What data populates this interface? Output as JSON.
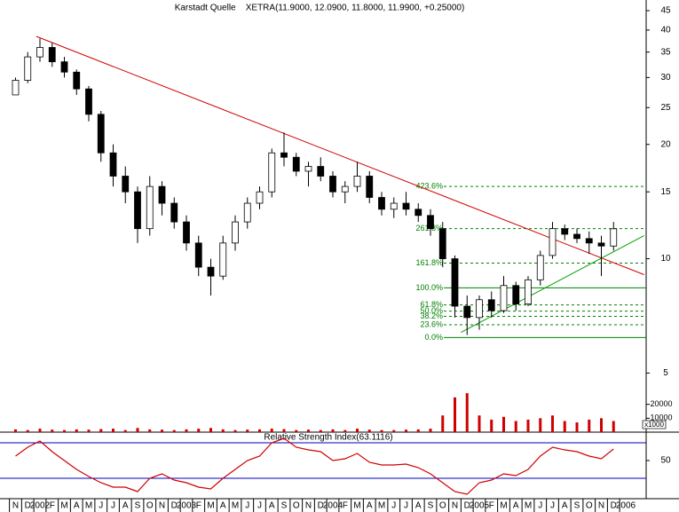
{
  "chart_data": {
    "type": "candlestick",
    "title": "Karstadt Quelle    XETRA(11.9000, 12.0900, 11.8000, 11.9900, +0.25000)",
    "categories": [
      "N",
      "D",
      "2002",
      "F",
      "M",
      "A",
      "M",
      "J",
      "J",
      "A",
      "S",
      "O",
      "N",
      "D",
      "2003",
      "F",
      "M",
      "A",
      "M",
      "J",
      "J",
      "A",
      "S",
      "O",
      "N",
      "D",
      "2004",
      "F",
      "M",
      "A",
      "M",
      "J",
      "J",
      "A",
      "S",
      "O",
      "N",
      "D",
      "2005",
      "F",
      "M",
      "A",
      "M",
      "J",
      "J",
      "A",
      "S",
      "O",
      "N",
      "D",
      "2006"
    ],
    "open": [
      27,
      29.5,
      34,
      36,
      33,
      31,
      28,
      24,
      19,
      16.5,
      15,
      12,
      15.5,
      14,
      12.5,
      11,
      9.5,
      9,
      11,
      12.5,
      14,
      15,
      19,
      18.5,
      17,
      17.5,
      16.5,
      15,
      15.5,
      16.5,
      14.5,
      13.5,
      14,
      13.5,
      13,
      12,
      10,
      7.5,
      7,
      7.8,
      7.3,
      8.5,
      7.6,
      8.8,
      10.2,
      12,
      11.6,
      11.3,
      11,
      10.8,
      null
    ],
    "high": [
      30,
      35,
      38,
      37,
      34,
      31.5,
      28.5,
      24.5,
      20,
      17.5,
      15.5,
      16.5,
      16,
      14.5,
      13,
      11.5,
      10,
      11.5,
      13,
      14.5,
      15.5,
      19.5,
      21.5,
      19,
      18,
      18.5,
      17,
      16,
      18,
      17,
      15,
      14.5,
      15,
      14,
      13.5,
      12.5,
      10.2,
      8,
      8,
      8.2,
      9,
      8.7,
      9,
      10.5,
      12.5,
      12.3,
      12,
      11.8,
      11.5,
      12.5,
      null
    ],
    "low": [
      27,
      29,
      33,
      32,
      30,
      27,
      23,
      18,
      15.5,
      14,
      11,
      11.5,
      13,
      12,
      10.5,
      9,
      8,
      8.8,
      10.5,
      12,
      13.5,
      14.5,
      17.5,
      16.5,
      15.5,
      16,
      14.5,
      14,
      15,
      14,
      13,
      12.8,
      13,
      12.5,
      11.5,
      9.5,
      7,
      6.3,
      6.5,
      7,
      7.2,
      7.3,
      7.5,
      8.5,
      10,
      11.2,
      11,
      10.3,
      9,
      10.5,
      null
    ],
    "close": [
      29.5,
      34,
      36,
      33,
      31,
      28,
      24,
      19,
      16.5,
      15,
      12,
      15.5,
      14,
      12.5,
      11,
      9.5,
      9,
      11,
      12.5,
      14,
      15,
      19,
      18.5,
      17,
      17.5,
      16.5,
      15,
      15.5,
      16.5,
      14.5,
      13.5,
      14,
      13.5,
      13,
      12,
      10,
      7.5,
      7,
      7.8,
      7.3,
      8.5,
      7.6,
      8.8,
      10.2,
      12,
      11.6,
      11.3,
      11,
      10.8,
      11.99,
      null
    ],
    "ylim": [
      4.5,
      48
    ],
    "log_scale": true,
    "yticks": [
      45,
      40,
      35,
      30,
      25,
      20,
      15,
      10,
      5
    ],
    "trendlines": [
      {
        "color": "#d00000",
        "points": [
          [
            1.7,
            38.5
          ],
          [
            51.5,
            9.08
          ]
        ]
      },
      {
        "color": "#00a000",
        "points": [
          [
            36.5,
            6.4
          ],
          [
            51.5,
            11.5
          ]
        ]
      }
    ],
    "fib_levels": [
      {
        "label": "423.6%",
        "value": 15.5
      },
      {
        "label": "261.8%",
        "value": 12.0
      },
      {
        "label": "161.8%",
        "value": 9.74
      },
      {
        "label": "100.0%",
        "value": 8.38
      },
      {
        "label": "61.8%",
        "value": 7.56
      },
      {
        "label": "50.0%",
        "value": 7.28
      },
      {
        "label": "38.2%",
        "value": 7.05
      },
      {
        "label": "23.6%",
        "value": 6.7
      },
      {
        "label": "0.0%",
        "value": 6.2
      }
    ],
    "fib_color": "#008000",
    "volume": {
      "values": [
        2000,
        1500,
        2500,
        1800,
        1500,
        2000,
        1800,
        2200,
        2500,
        1500,
        3000,
        2000,
        1800,
        1500,
        2000,
        2500,
        3000,
        2000,
        1500,
        1800,
        2000,
        2500,
        2200,
        1500,
        1800,
        1500,
        2000,
        1500,
        2500,
        1800,
        1500,
        1500,
        1800,
        2000,
        2500,
        12000,
        25000,
        28000,
        12000,
        9000,
        11000,
        8000,
        9000,
        10000,
        12000,
        8000,
        7000,
        9000,
        10000,
        8000,
        null
      ],
      "color": "#d00000",
      "ylim": [
        0,
        30000
      ],
      "yticks": [
        20000,
        10000
      ],
      "unit_label": "x1000"
    },
    "rsi": {
      "title": "Relative Strength Index(63.1116)",
      "values": [
        55,
        65,
        72,
        60,
        50,
        40,
        32,
        25,
        20,
        20,
        15,
        30,
        35,
        28,
        25,
        20,
        18,
        30,
        40,
        50,
        55,
        70,
        75,
        65,
        62,
        60,
        50,
        52,
        58,
        48,
        45,
        45,
        46,
        42,
        35,
        25,
        15,
        12,
        25,
        28,
        35,
        33,
        40,
        55,
        65,
        62,
        60,
        55,
        52,
        63,
        null
      ],
      "color": "#d00000",
      "ylim": [
        7,
        82
      ],
      "yticks": [
        50
      ],
      "levels": [
        30,
        70
      ],
      "level_color": "#0000c0"
    }
  }
}
